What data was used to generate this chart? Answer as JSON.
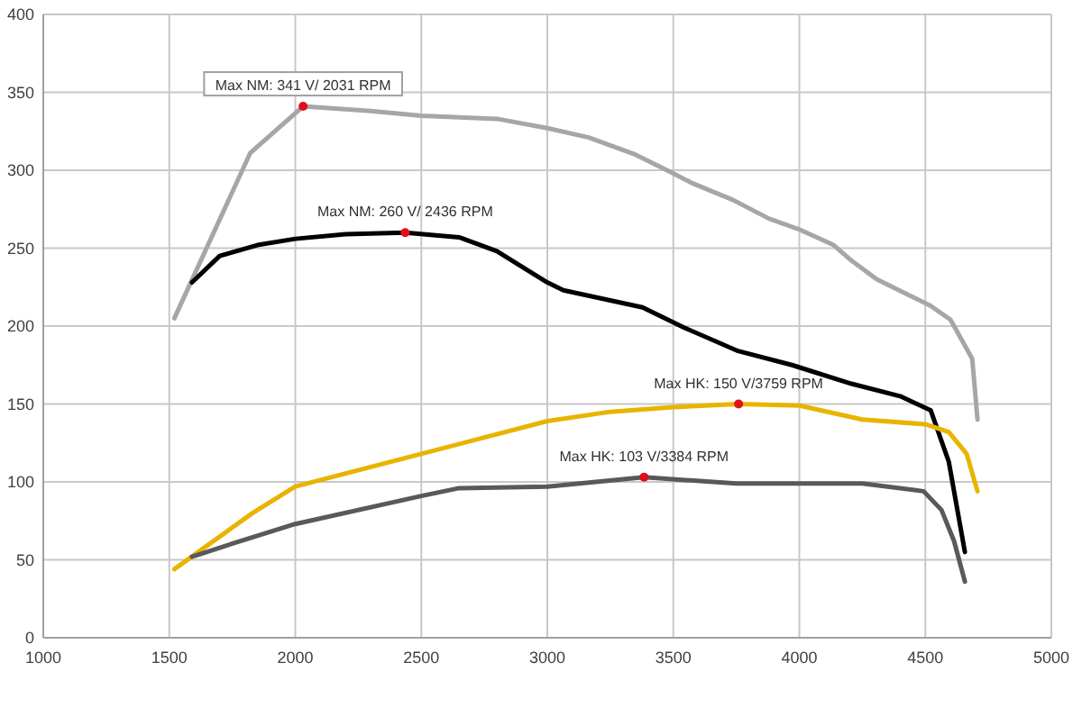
{
  "chart_data": {
    "type": "line",
    "xlim": [
      1000,
      5000
    ],
    "xticks": [
      1000,
      1500,
      2000,
      2500,
      3000,
      3500,
      4000,
      4500,
      5000
    ],
    "ylim": [
      0,
      400
    ],
    "yticks": [
      0,
      50,
      100,
      150,
      200,
      250,
      300,
      350,
      400
    ],
    "grid": true,
    "marker": "none",
    "line_style": "solid",
    "series": [
      {
        "color": "#a6a6a6",
        "x": [
          1520,
          1821,
          2031,
          2300,
          2500,
          2800,
          3000,
          3164,
          3350,
          3500,
          3571,
          3736,
          3879,
          4000,
          4136,
          4207,
          4307,
          4421,
          4521,
          4600,
          4686,
          4707
        ],
        "values": [
          205,
          311,
          341,
          338,
          335,
          333,
          327,
          321,
          310,
          298,
          292,
          281,
          269,
          262,
          252,
          242,
          230,
          221,
          213,
          204,
          179,
          140
        ]
      },
      {
        "color": "#000000",
        "x": [
          1590,
          1700,
          1850,
          2000,
          2200,
          2436,
          2650,
          2800,
          3000,
          3064,
          3378,
          3543,
          3757,
          3971,
          4207,
          4400,
          4521,
          4593,
          4636,
          4657
        ],
        "values": [
          228,
          245,
          252,
          256,
          259,
          260,
          257,
          248,
          228,
          223,
          212,
          199,
          184,
          175,
          163,
          155,
          146,
          113,
          74,
          55
        ]
      },
      {
        "color": "#e8b400",
        "x": [
          1520,
          1830,
          2000,
          2500,
          3000,
          3250,
          3500,
          3759,
          4000,
          4250,
          4500,
          4593,
          4664,
          4707
        ],
        "values": [
          44,
          80,
          97,
          118,
          139,
          145,
          148,
          150,
          149,
          140,
          137,
          132,
          118,
          94
        ]
      },
      {
        "color": "#595959",
        "x": [
          1590,
          1800,
          2000,
          2500,
          2650,
          3000,
          3384,
          3750,
          4000,
          4250,
          4493,
          4564,
          4614,
          4657
        ],
        "values": [
          52,
          63,
          73,
          91,
          96,
          97,
          103,
          99,
          99,
          99,
          94,
          82,
          62,
          36
        ]
      }
    ],
    "annotations": [
      {
        "text": "Max NM: 341 V/ 2031 RPM",
        "x": 2031,
        "y": 341
      },
      {
        "text": "Max NM: 260 V/ 2436 RPM",
        "x": 2436,
        "y": 260
      },
      {
        "text": "Max HK: 150 V/3759 RPM",
        "x": 3759,
        "y": 150
      },
      {
        "text": "Max HK: 103 V/3384 RPM",
        "x": 3384,
        "y": 103
      }
    ]
  }
}
